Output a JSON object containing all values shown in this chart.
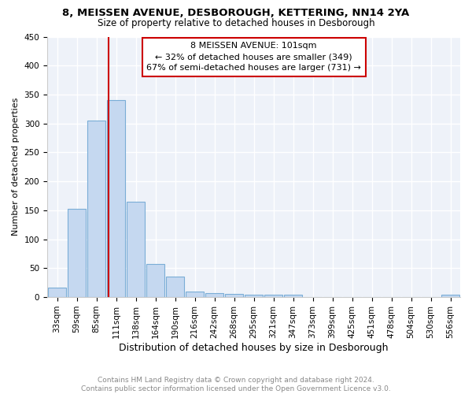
{
  "title1": "8, MEISSEN AVENUE, DESBOROUGH, KETTERING, NN14 2YA",
  "title2": "Size of property relative to detached houses in Desborough",
  "xlabel": "Distribution of detached houses by size in Desborough",
  "ylabel": "Number of detached properties",
  "categories": [
    "33sqm",
    "59sqm",
    "85sqm",
    "111sqm",
    "138sqm",
    "164sqm",
    "190sqm",
    "216sqm",
    "242sqm",
    "268sqm",
    "295sqm",
    "321sqm",
    "347sqm",
    "373sqm",
    "399sqm",
    "425sqm",
    "451sqm",
    "478sqm",
    "504sqm",
    "530sqm",
    "556sqm"
  ],
  "values": [
    16,
    152,
    305,
    340,
    165,
    57,
    35,
    9,
    7,
    5,
    4,
    4,
    4,
    0,
    0,
    0,
    0,
    0,
    0,
    0,
    4
  ],
  "bar_color": "#c5d8f0",
  "bar_edge_color": "#7aadd6",
  "background_color": "#eef2f9",
  "grid_color": "#ffffff",
  "annotation_text1": "8 MEISSEN AVENUE: 101sqm",
  "annotation_text2": "← 32% of detached houses are smaller (349)",
  "annotation_text3": "67% of semi-detached houses are larger (731) →",
  "annotation_box_facecolor": "#ffffff",
  "annotation_box_edgecolor": "#cc0000",
  "red_line_color": "#cc0000",
  "ylim": [
    0,
    450
  ],
  "yticks": [
    0,
    50,
    100,
    150,
    200,
    250,
    300,
    350,
    400,
    450
  ],
  "footnote1": "Contains HM Land Registry data © Crown copyright and database right 2024.",
  "footnote2": "Contains public sector information licensed under the Open Government Licence v3.0.",
  "footnote_color": "#888888",
  "title1_fontsize": 9.5,
  "title2_fontsize": 8.5,
  "xlabel_fontsize": 9,
  "ylabel_fontsize": 8,
  "tick_fontsize": 7.5,
  "annot_fontsize": 8,
  "footnote_fontsize": 6.5
}
